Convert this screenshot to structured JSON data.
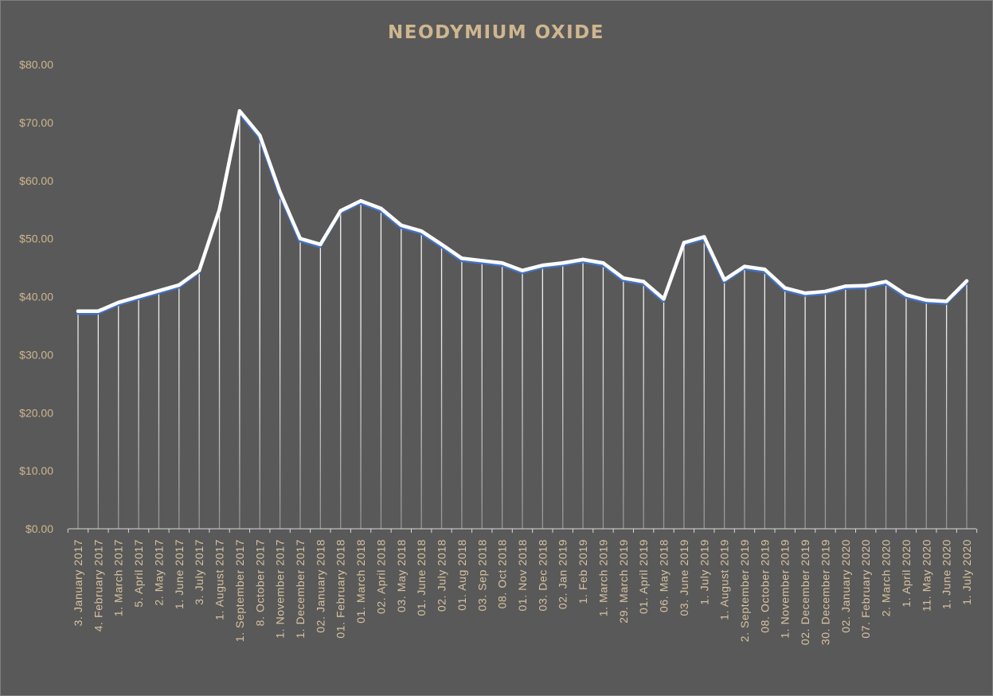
{
  "colors": {
    "background": "#595959",
    "title": "#ceb68f",
    "y_tick_label": "#ceb68f",
    "x_tick_label": "#d8c3a0",
    "line_main": "#ffffff",
    "line_shadow": "#4472c4",
    "drop_line": "#ffffff"
  },
  "chart_data": {
    "type": "line",
    "title": "NEODYMIUM  OXIDE",
    "xlabel": "",
    "ylabel": "",
    "ylim": [
      0,
      80
    ],
    "y_ticks": [
      "$0.00",
      "$10.00",
      "$20.00",
      "$30.00",
      "$40.00",
      "$50.00",
      "$60.00",
      "$70.00",
      "$80.00"
    ],
    "grid": false,
    "legend": "none",
    "drop_lines": true,
    "categories": [
      "3. January 2017",
      "4. February 2017",
      "1. March 2017",
      "5. April 2017",
      "2. May 2017",
      "1. June 2017",
      "3. July 2017",
      "1. August 2017",
      "1. September 2017",
      "8. October 2017",
      "1. November 2017",
      "1. December 2017",
      "02. January 2018",
      "01. February 2018",
      "01. March 2018",
      "02. April 2018",
      "03. May 2018",
      "01. June 2018",
      "02. July 2018",
      "01. Aug 2018",
      "03. Sep 2018",
      "08. Oct 2018",
      "01. Nov 2018",
      "03. Dec 2018",
      "02. Jan 2019",
      "1. Feb 2019",
      "1. March 2019",
      "29. March 2019",
      "01. April 2019",
      "06. May 2018",
      "03. June 2019",
      "1. July 2019",
      "1. August 2019",
      "2. September 2019",
      "08. October 2019",
      "1. November 2019",
      "02. December 2019",
      "30. December 2019",
      "02. January 2020",
      "07. February 2020",
      "2. March 2020",
      "1. April 2020",
      "11. May 2020",
      "1. June 2020",
      "1. July 2020"
    ],
    "series": [
      {
        "values": [
          37.5,
          37.5,
          39.0,
          40.0,
          41.0,
          42.0,
          44.5,
          55.0,
          72.0,
          67.8,
          58.0,
          50.0,
          49.0,
          54.8,
          56.5,
          55.2,
          52.3,
          51.3,
          49.0,
          46.6,
          46.2,
          45.8,
          44.5,
          45.4,
          45.8,
          46.4,
          45.8,
          43.2,
          42.6,
          39.6,
          49.3,
          50.3,
          42.9,
          45.2,
          44.7,
          41.5,
          40.6,
          40.9,
          41.8,
          41.9,
          42.6,
          40.3,
          39.4,
          39.2,
          42.7
        ]
      }
    ]
  }
}
